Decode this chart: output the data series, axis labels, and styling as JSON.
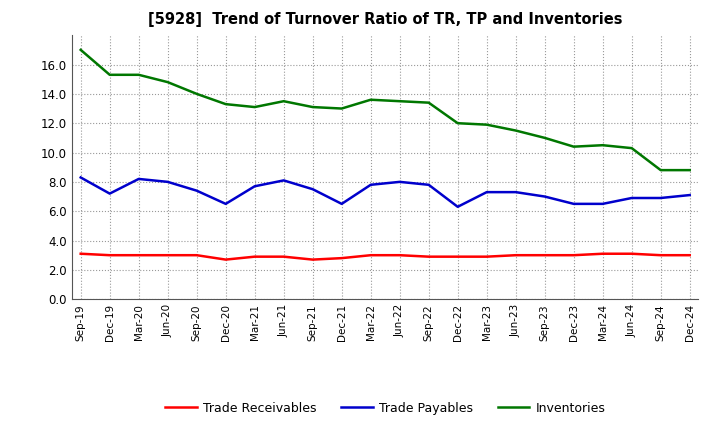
{
  "title": "[5928]  Trend of Turnover Ratio of TR, TP and Inventories",
  "labels": [
    "Sep-19",
    "Dec-19",
    "Mar-20",
    "Jun-20",
    "Sep-20",
    "Dec-20",
    "Mar-21",
    "Jun-21",
    "Sep-21",
    "Dec-21",
    "Mar-22",
    "Jun-22",
    "Sep-22",
    "Dec-22",
    "Mar-23",
    "Jun-23",
    "Sep-23",
    "Dec-23",
    "Mar-24",
    "Jun-24",
    "Sep-24",
    "Dec-24"
  ],
  "trade_receivables": [
    3.1,
    3.0,
    3.0,
    3.0,
    3.0,
    2.7,
    2.9,
    2.9,
    2.7,
    2.8,
    3.0,
    3.0,
    2.9,
    2.9,
    2.9,
    3.0,
    3.0,
    3.0,
    3.1,
    3.1,
    3.0,
    3.0
  ],
  "trade_payables": [
    8.3,
    7.2,
    8.2,
    8.0,
    7.4,
    6.5,
    7.7,
    8.1,
    7.5,
    6.5,
    7.8,
    8.0,
    7.8,
    6.3,
    7.3,
    7.3,
    7.0,
    6.5,
    6.5,
    6.9,
    6.9,
    7.1
  ],
  "inventories": [
    17.0,
    15.3,
    15.3,
    14.8,
    14.0,
    13.3,
    13.1,
    13.5,
    13.1,
    13.0,
    13.6,
    13.5,
    13.4,
    12.0,
    11.9,
    11.5,
    11.0,
    10.4,
    10.5,
    10.3,
    8.8,
    8.8
  ],
  "tr_color": "#ff0000",
  "tp_color": "#0000cc",
  "inv_color": "#007700",
  "ylim": [
    0.0,
    18.0
  ],
  "yticks": [
    0.0,
    2.0,
    4.0,
    6.0,
    8.0,
    10.0,
    12.0,
    14.0,
    16.0
  ],
  "bg_color": "#ffffff",
  "plot_bg_color": "#ffffff",
  "grid_color": "#aaaaaa",
  "legend_tr": "Trade Receivables",
  "legend_tp": "Trade Payables",
  "legend_inv": "Inventories"
}
